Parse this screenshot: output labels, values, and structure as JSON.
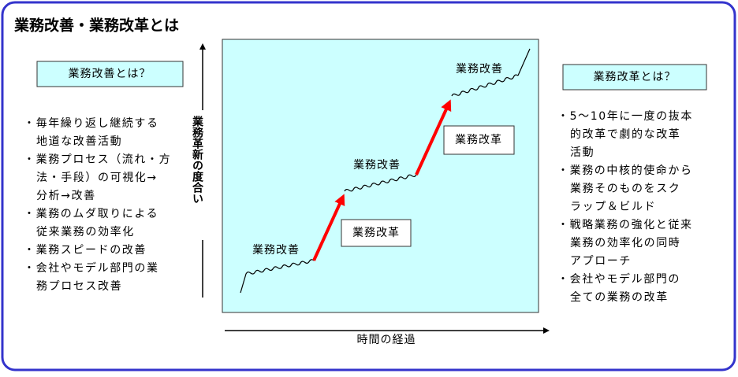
{
  "title": "業務改善・業務改革とは",
  "left": {
    "heading": "業務改善とは？",
    "items": [
      [
        "・毎年繰り返し継続する",
        "地道な改善活動"
      ],
      [
        "・業務プロセス（流れ・方",
        "法・手段）の可視化→",
        "分析→改善"
      ],
      [
        "・業務のムダ取りによる",
        "従来業務の効率化"
      ],
      [
        "・業務スピードの改善"
      ],
      [
        "・会社やモデル部門の業",
        "務プロセス改善"
      ]
    ]
  },
  "right": {
    "heading": "業務改革とは？",
    "items": [
      [
        "・5～10年に一度の抜本",
        "的改革で劇的な改革",
        "活動"
      ],
      [
        "・業務の中核的使命から",
        "業務そのものをスク",
        "ラップ＆ビルド"
      ],
      [
        "・戦略業務の強化と従来",
        "業務の効率化の同時",
        "アプローチ"
      ],
      [
        "・会社やモデル部門の",
        "全ての業務の改革"
      ]
    ]
  },
  "diagram": {
    "y_axis_label": "業務革新の度合い",
    "x_axis_label": "時間の経過",
    "kaizen_labels": [
      "業務改善",
      "業務改善",
      "業務改善"
    ],
    "kaikaku_labels": [
      "業務改革",
      "業務改革"
    ]
  }
}
